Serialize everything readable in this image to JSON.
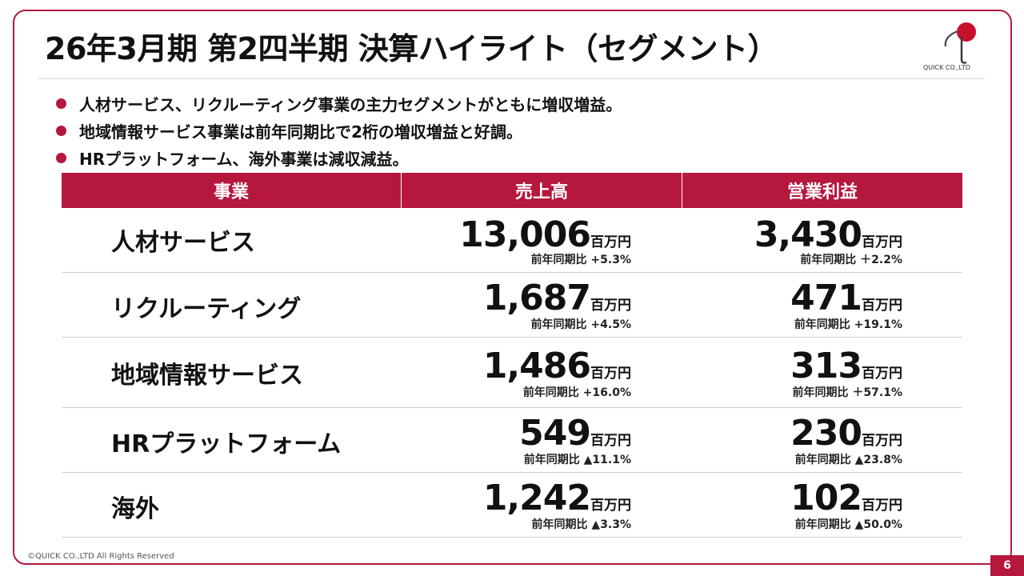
{
  "title": "26年3月期 第2四半期 決算ハイライト（セグメント）",
  "logo": {
    "text": "QUICK CO.,LTD",
    "colors": {
      "circle": "#c8102e",
      "stroke": "#3a3a3a"
    }
  },
  "bullets": [
    "人材サービス、リクルーティング事業の主力セグメントがともに増収増益。",
    "地域情報サービス事業は前年同期比で2桁の増収増益と好調。",
    "HRプラットフォーム、海外事業は減収減益。"
  ],
  "table": {
    "headers": [
      "事業",
      "売上高",
      "営業利益"
    ],
    "rows": [
      {
        "segment": "人材サービス",
        "sales": "13,006",
        "sales_unit": "百万円",
        "sales_yoy": "前年同期比 +5.3%",
        "profit": "3,430",
        "profit_unit": "百万円",
        "profit_yoy": "前年同期比 ＋2.2%"
      },
      {
        "segment": "リクルーティング",
        "sales": "1,687",
        "sales_unit": "百万円",
        "sales_yoy": "前年同期比 +4.5%",
        "profit": "471",
        "profit_unit": "百万円",
        "profit_yoy": "前年同期比 +19.1%"
      },
      {
        "segment": "地域情報サービス",
        "sales": "1,486",
        "sales_unit": "百万円",
        "sales_yoy": "前年同期比 +16.0%",
        "profit": "313",
        "profit_unit": "百万円",
        "profit_yoy": "前年同期比 ＋57.1%"
      },
      {
        "segment": "HRプラットフォーム",
        "sales": "549",
        "sales_unit": "百万円",
        "sales_yoy": "前年同期比 ▲11.1%",
        "profit": "230",
        "profit_unit": "百万円",
        "profit_yoy": "前年同期比 ▲23.8%"
      },
      {
        "segment": "海外",
        "sales": "1,242",
        "sales_unit": "百万円",
        "sales_yoy": "前年同期比 ▲3.3%",
        "profit": "102",
        "profit_unit": "百万円",
        "profit_yoy": "前年同期比 ▲50.0%"
      }
    ]
  },
  "footer": {
    "copyright": "©QUICK CO.,LTD All Rights Reserved",
    "page_number": "6"
  },
  "colors": {
    "accent": "#b5173d"
  }
}
